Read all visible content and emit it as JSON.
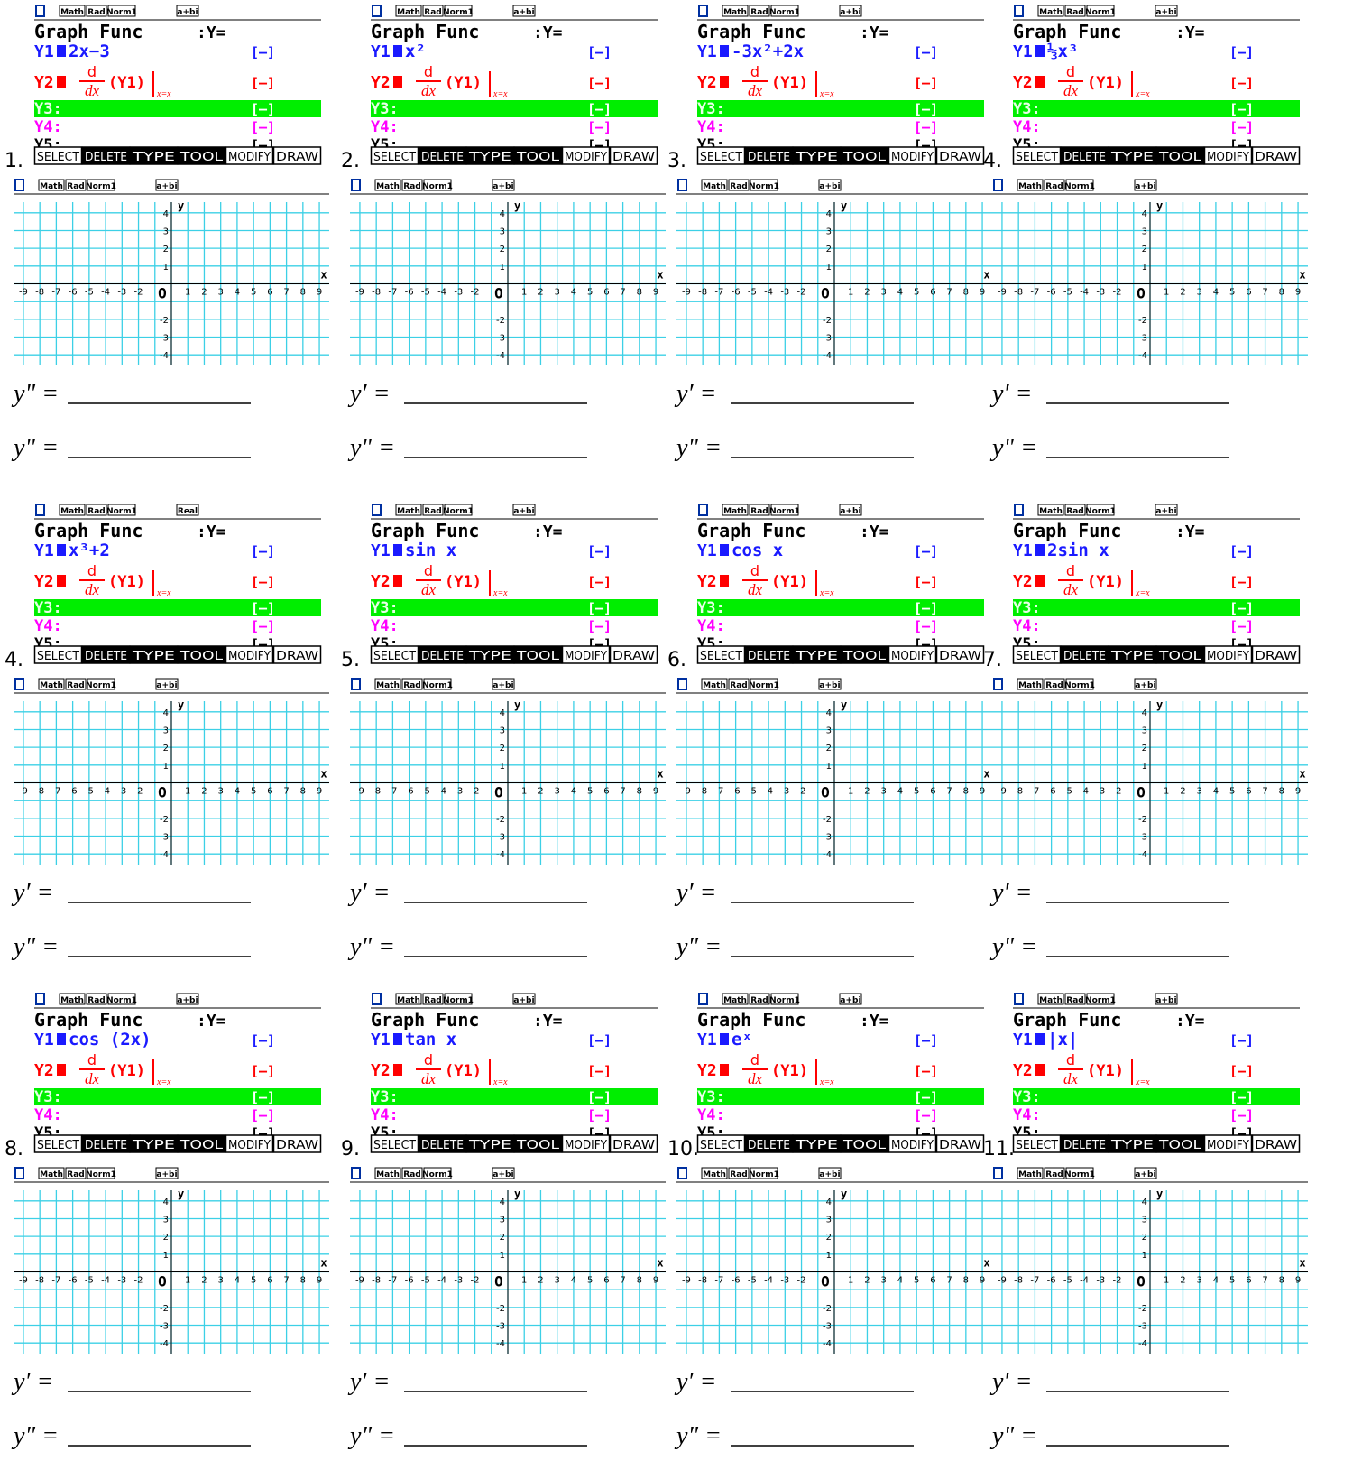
{
  "common": {
    "status": [
      "Math",
      "Rad",
      "Norm1"
    ],
    "title": "Graph Func",
    "mode_y": ":Y=",
    "y1": "Y1",
    "y2": "Y2",
    "y3": "Y3:",
    "y4": "Y4:",
    "y5": "Y5:",
    "style": "[—]",
    "deriv_num": "d",
    "deriv_den": "dx",
    "deriv_arg": "(Y1)",
    "deriv_at": "x=x",
    "softkeys": [
      "SELECT",
      "DELETE",
      "TYPE",
      "TOOL",
      "MODIFY",
      "DRAW"
    ]
  },
  "graph": {
    "status": [
      "Math",
      "Rad",
      "Norm1"
    ],
    "mode": "a+bi",
    "xticks": [
      -9,
      -8,
      -7,
      -6,
      -5,
      -4,
      -3,
      -2,
      1,
      2,
      3,
      4,
      5,
      6,
      7,
      8,
      9
    ],
    "yticks": [
      4,
      3,
      2,
      1,
      -2,
      -3,
      -4
    ],
    "x_label": "x",
    "y_label": "y",
    "origin": "O"
  },
  "panels": [
    {
      "number": "1.",
      "mode": "a+bi",
      "y1_expr": "2x−3",
      "answers": [
        "y\" =",
        "y\" ="
      ]
    },
    {
      "number": "2.",
      "mode": "a+bi",
      "y1_expr": "x²",
      "answers": [
        "y′ =",
        "y\" ="
      ]
    },
    {
      "number": "3.",
      "mode": "a+bi",
      "y1_expr": "-3x²+2x",
      "answers": [
        "y′ =",
        "y\" ="
      ]
    },
    {
      "number": "4.",
      "mode": "a+bi",
      "y1_expr": "⅓x³",
      "answers": [
        "y′ =",
        "y\" ="
      ]
    },
    {
      "number": "4.",
      "mode": "Real",
      "y1_expr": "x³+2",
      "answers": [
        "y′ =",
        "y\" ="
      ]
    },
    {
      "number": "5.",
      "mode": "a+bi",
      "y1_expr": "sin x",
      "answers": [
        "y′ =",
        "y\" ="
      ]
    },
    {
      "number": "6.",
      "mode": "a+bi",
      "y1_expr": "cos x",
      "answers": [
        "y′ =",
        "y\" ="
      ]
    },
    {
      "number": "7.",
      "mode": "a+bi",
      "y1_expr": "2sin x",
      "answers": [
        "y′ =",
        "y\" ="
      ]
    },
    {
      "number": "8.",
      "mode": "a+bi",
      "y1_expr": "cos (2x)",
      "answers": [
        "y′ =",
        "y\" ="
      ]
    },
    {
      "number": "9.",
      "mode": "a+bi",
      "y1_expr": "tan x",
      "answers": [
        "y′ =",
        "y\" ="
      ]
    },
    {
      "number": "10.",
      "mode": "a+bi",
      "y1_expr": "eˣ",
      "answers": [
        "y′ =",
        "y\" ="
      ]
    },
    {
      "number": "11.",
      "mode": "a+bi",
      "y1_expr": "|x|",
      "answers": [
        "y′ =",
        "y\" ="
      ]
    }
  ]
}
